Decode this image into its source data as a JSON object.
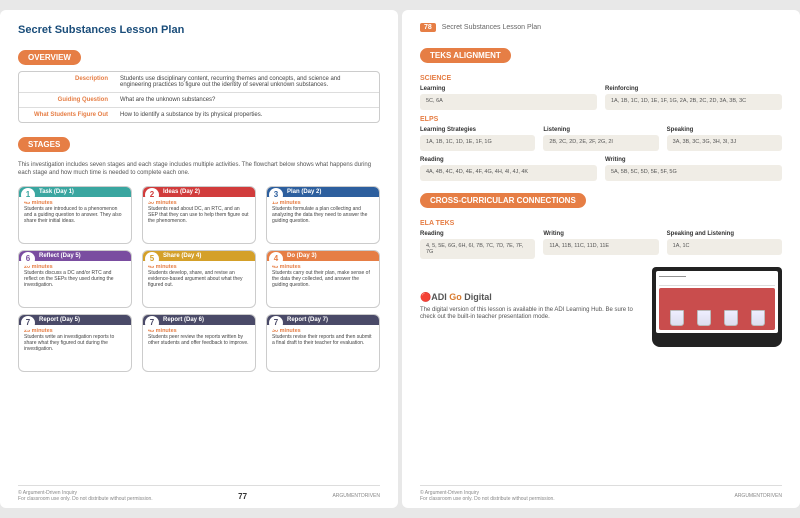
{
  "lesson_title": "Secret Substances Lesson Plan",
  "page_left_number": "77",
  "page_right_number": "78",
  "page_right_label": "Secret Substances Lesson Plan",
  "sections": {
    "overview": "OVERVIEW",
    "stages": "STAGES",
    "teks": "TEKS ALIGNMENT",
    "cross": "CROSS-CURRICULAR CONNECTIONS"
  },
  "overview": {
    "rows": [
      {
        "label": "Description",
        "val": "Students use disciplinary content, recurring themes and concepts, and science and engineering practices to figure out the identity of several unknown substances."
      },
      {
        "label": "Guiding Question",
        "val": "What are the unknown substances?"
      },
      {
        "label": "What Students Figure Out",
        "val": "How to identify a substance by its physical properties."
      }
    ]
  },
  "stages_intro": "This investigation includes seven stages and each stage includes multiple activities. The flowchart below shows what happens during each stage and how much time is needed to complete each one.",
  "stages": [
    {
      "num": "1",
      "head": "Task (Day 1)",
      "color": "#3aa6a0",
      "time": "45 minutes",
      "body": "Students are introduced to a phenomenon and a guiding question to answer. They also share their initial ideas."
    },
    {
      "num": "2",
      "head": "Ideas (Day 2)",
      "color": "#d13c3c",
      "time": "30 minutes",
      "body": "Students read about DC, an RTC, and an SEP that they can use to help them figure out the phenomenon."
    },
    {
      "num": "3",
      "head": "Plan (Day 2)",
      "color": "#2d5f9e",
      "time": "15 minutes",
      "body": "Students formulate a plan collecting and analyzing the data they need to answer the guiding question."
    },
    {
      "num": "6",
      "head": "Reflect (Day 5)",
      "color": "#7a4da0",
      "time": "20 minutes",
      "body": "Students discuss a DC and/or RTC and reflect on the SEPs they used during the investigation."
    },
    {
      "num": "5",
      "head": "Share (Day 4)",
      "color": "#d4a029",
      "time": "45 minutes",
      "body": "Students develop, share, and revise an evidence-based argument about what they figured out."
    },
    {
      "num": "4",
      "head": "Do (Day 3)",
      "color": "#e67e45",
      "time": "45 minutes",
      "body": "Students carry out their plan, make sense of the data they collected, and answer the guiding question."
    },
    {
      "num": "7",
      "head": "Report (Day 5)",
      "color": "#4a4a68",
      "time": "25 minutes",
      "body": "Students write an investigation reports to share what they figured out during the investigation."
    },
    {
      "num": "7",
      "head": "Report (Day 6)",
      "color": "#4a4a68",
      "time": "45 minutes",
      "body": "Students peer review the reports written by other students and offer feedback to improve."
    },
    {
      "num": "7",
      "head": "Report (Day 7)",
      "color": "#4a4a68",
      "time": "30 minutes",
      "body": "Students revise their reports and then submit a final draft to their teacher for evaluation."
    }
  ],
  "teks": {
    "science_label": "SCIENCE",
    "science": [
      [
        {
          "label": "Learning",
          "val": "5C, 6A"
        },
        {
          "label": "Reinforcing",
          "val": "1A, 1B, 1C, 1D, 1E, 1F, 1G, 2A, 2B, 2C, 2D, 3A, 3B, 3C"
        }
      ]
    ],
    "elps_label": "ELPS",
    "elps": [
      [
        {
          "label": "Learning Strategies",
          "val": "1A, 1B, 1C, 1D, 1E, 1F, 1G"
        },
        {
          "label": "Listening",
          "val": "2B, 2C, 2D, 2E, 2F, 2G, 2I"
        },
        {
          "label": "Speaking",
          "val": "3A, 3B, 3C, 3G, 3H, 3I, 3J"
        }
      ],
      [
        {
          "label": "Reading",
          "val": "4A, 4B, 4C, 4D, 4E, 4F, 4G, 4H, 4I, 4J, 4K"
        },
        {
          "label": "Writing",
          "val": "5A, 5B, 5C, 5D, 5E, 5F, 5G"
        }
      ]
    ]
  },
  "cross": {
    "ela_label": "ELA TEKS",
    "rows": [
      [
        {
          "label": "Reading",
          "val": "4, 5, 5E, 6G, 6H, 6I, 7B, 7C, 7D, 7E, 7F, 7G"
        },
        {
          "label": "Writing",
          "val": "11A, 11B, 11C, 11D, 11E"
        },
        {
          "label": "Speaking and Listening",
          "val": "1A, 1C"
        }
      ]
    ]
  },
  "digital": {
    "brand": "ADI",
    "go": "Go",
    "title": "Digital",
    "body": "The digital version of this lesson is available in the ADI Learning Hub. Be sure to check out the built-in teacher presentation mode."
  },
  "footer": {
    "copyright": "© Argument-Driven Inquiry",
    "use": "For classroom use only. Do not distribute without permission.",
    "brand": "ARGUMENTDRIVEN"
  }
}
